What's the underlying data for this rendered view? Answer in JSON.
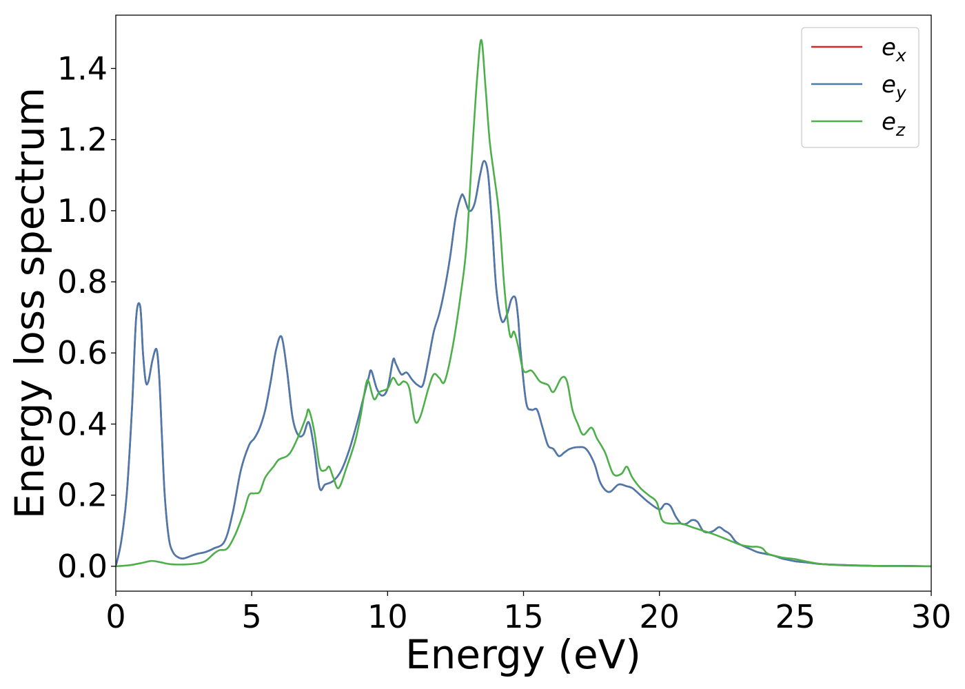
{
  "chart_data": {
    "type": "line",
    "title": "",
    "xlabel": "Energy (eV)",
    "ylabel": "Energy loss spectrum",
    "xlim": [
      0,
      30
    ],
    "ylim": [
      -0.07,
      1.55
    ],
    "xticks": [
      0,
      5,
      10,
      15,
      20,
      25,
      30
    ],
    "yticks": [
      0.0,
      0.2,
      0.4,
      0.6,
      0.8,
      1.0,
      1.2,
      1.4
    ],
    "xtick_labels": [
      "0",
      "5",
      "10",
      "15",
      "20",
      "25",
      "30"
    ],
    "ytick_labels": [
      "0.0",
      "0.2",
      "0.4",
      "0.6",
      "0.8",
      "1.0",
      "1.2",
      "1.4"
    ],
    "grid": false,
    "legend_position": "top-right",
    "legend": [
      {
        "base": "e",
        "sub": "x",
        "color": "#d62728"
      },
      {
        "base": "e",
        "sub": "y",
        "color": "#4a7aad"
      },
      {
        "base": "e",
        "sub": "z",
        "color": "#4daf4a"
      }
    ],
    "series": [
      {
        "name": "e_x",
        "color": "#d62728",
        "x": [
          0,
          0.2,
          0.4,
          0.6,
          0.75,
          0.9,
          1.0,
          1.1,
          1.2,
          1.35,
          1.5,
          1.6,
          1.7,
          1.8,
          1.95,
          2.1,
          2.3,
          2.5,
          2.8,
          3.0,
          3.3,
          3.6,
          4.0,
          4.3,
          4.6,
          4.9,
          5.1,
          5.3,
          5.5,
          5.7,
          5.9,
          6.1,
          6.3,
          6.5,
          6.7,
          6.9,
          7.1,
          7.3,
          7.5,
          7.7,
          8.0,
          8.3,
          8.6,
          8.9,
          9.1,
          9.3,
          9.4,
          9.6,
          9.8,
          10.0,
          10.2,
          10.3,
          10.5,
          10.7,
          10.9,
          11.1,
          11.3,
          11.5,
          11.7,
          11.9,
          12.1,
          12.3,
          12.5,
          12.7,
          12.8,
          13.0,
          13.2,
          13.4,
          13.55,
          13.7,
          13.85,
          14.0,
          14.2,
          14.4,
          14.55,
          14.7,
          14.8,
          14.9,
          15.1,
          15.3,
          15.5,
          15.7,
          15.9,
          16.1,
          16.3,
          16.5,
          16.7,
          17.0,
          17.3,
          17.6,
          17.8,
          18.0,
          18.2,
          18.5,
          18.8,
          19.0,
          19.3,
          19.6,
          20.0,
          20.2,
          20.4,
          20.6,
          20.8,
          21.0,
          21.2,
          21.4,
          21.6,
          21.8,
          22.0,
          22.2,
          22.4,
          22.6,
          22.8,
          23.0,
          23.3,
          23.6,
          23.9,
          24.2,
          24.5,
          24.8,
          25.0,
          25.5,
          26.0,
          27.0,
          28.0,
          29.0,
          30.0
        ],
        "y": [
          0.0,
          0.07,
          0.2,
          0.45,
          0.7,
          0.73,
          0.6,
          0.52,
          0.52,
          0.58,
          0.61,
          0.53,
          0.36,
          0.2,
          0.08,
          0.04,
          0.025,
          0.022,
          0.03,
          0.035,
          0.04,
          0.05,
          0.07,
          0.15,
          0.27,
          0.34,
          0.36,
          0.39,
          0.44,
          0.52,
          0.61,
          0.645,
          0.55,
          0.42,
          0.37,
          0.37,
          0.405,
          0.33,
          0.22,
          0.23,
          0.24,
          0.27,
          0.33,
          0.41,
          0.47,
          0.53,
          0.55,
          0.5,
          0.48,
          0.5,
          0.58,
          0.57,
          0.54,
          0.545,
          0.525,
          0.51,
          0.51,
          0.58,
          0.66,
          0.71,
          0.78,
          0.87,
          0.98,
          1.04,
          1.04,
          1.0,
          1.02,
          1.1,
          1.14,
          1.1,
          0.95,
          0.78,
          0.69,
          0.71,
          0.75,
          0.755,
          0.7,
          0.6,
          0.46,
          0.44,
          0.44,
          0.39,
          0.34,
          0.33,
          0.31,
          0.32,
          0.33,
          0.335,
          0.33,
          0.29,
          0.24,
          0.215,
          0.21,
          0.23,
          0.225,
          0.22,
          0.2,
          0.18,
          0.16,
          0.175,
          0.17,
          0.14,
          0.12,
          0.12,
          0.13,
          0.125,
          0.1,
          0.095,
          0.1,
          0.11,
          0.1,
          0.09,
          0.07,
          0.06,
          0.05,
          0.04,
          0.035,
          0.03,
          0.022,
          0.017,
          0.014,
          0.01,
          0.006,
          0.003,
          0.001,
          0.001,
          0.0
        ]
      },
      {
        "name": "e_y",
        "color": "#4a7aad",
        "x": [
          0,
          0.2,
          0.4,
          0.6,
          0.75,
          0.9,
          1.0,
          1.1,
          1.2,
          1.35,
          1.5,
          1.6,
          1.7,
          1.8,
          1.95,
          2.1,
          2.3,
          2.5,
          2.8,
          3.0,
          3.3,
          3.6,
          4.0,
          4.3,
          4.6,
          4.9,
          5.1,
          5.3,
          5.5,
          5.7,
          5.9,
          6.1,
          6.3,
          6.5,
          6.7,
          6.9,
          7.1,
          7.3,
          7.5,
          7.7,
          8.0,
          8.3,
          8.6,
          8.9,
          9.1,
          9.3,
          9.4,
          9.6,
          9.8,
          10.0,
          10.2,
          10.3,
          10.5,
          10.7,
          10.9,
          11.1,
          11.3,
          11.5,
          11.7,
          11.9,
          12.1,
          12.3,
          12.5,
          12.7,
          12.8,
          13.0,
          13.2,
          13.4,
          13.55,
          13.7,
          13.85,
          14.0,
          14.2,
          14.4,
          14.55,
          14.7,
          14.8,
          14.9,
          15.1,
          15.3,
          15.5,
          15.7,
          15.9,
          16.1,
          16.3,
          16.5,
          16.7,
          17.0,
          17.3,
          17.6,
          17.8,
          18.0,
          18.2,
          18.5,
          18.8,
          19.0,
          19.3,
          19.6,
          20.0,
          20.2,
          20.4,
          20.6,
          20.8,
          21.0,
          21.2,
          21.4,
          21.6,
          21.8,
          22.0,
          22.2,
          22.4,
          22.6,
          22.8,
          23.0,
          23.3,
          23.6,
          23.9,
          24.2,
          24.5,
          24.8,
          25.0,
          25.5,
          26.0,
          27.0,
          28.0,
          29.0,
          30.0
        ],
        "y": [
          0.0,
          0.07,
          0.2,
          0.45,
          0.7,
          0.73,
          0.6,
          0.52,
          0.52,
          0.58,
          0.61,
          0.53,
          0.36,
          0.2,
          0.08,
          0.04,
          0.025,
          0.022,
          0.03,
          0.035,
          0.04,
          0.05,
          0.07,
          0.15,
          0.27,
          0.34,
          0.36,
          0.39,
          0.44,
          0.52,
          0.61,
          0.645,
          0.55,
          0.42,
          0.37,
          0.37,
          0.405,
          0.33,
          0.22,
          0.23,
          0.24,
          0.27,
          0.33,
          0.41,
          0.47,
          0.53,
          0.55,
          0.5,
          0.48,
          0.5,
          0.58,
          0.57,
          0.54,
          0.545,
          0.525,
          0.51,
          0.51,
          0.58,
          0.66,
          0.71,
          0.78,
          0.87,
          0.98,
          1.04,
          1.04,
          1.0,
          1.02,
          1.1,
          1.14,
          1.1,
          0.95,
          0.78,
          0.69,
          0.71,
          0.75,
          0.755,
          0.7,
          0.6,
          0.46,
          0.44,
          0.44,
          0.39,
          0.34,
          0.33,
          0.31,
          0.32,
          0.33,
          0.335,
          0.33,
          0.29,
          0.24,
          0.215,
          0.21,
          0.23,
          0.225,
          0.22,
          0.2,
          0.18,
          0.16,
          0.175,
          0.17,
          0.14,
          0.12,
          0.12,
          0.13,
          0.125,
          0.1,
          0.095,
          0.1,
          0.11,
          0.1,
          0.09,
          0.07,
          0.06,
          0.05,
          0.04,
          0.035,
          0.03,
          0.022,
          0.017,
          0.014,
          0.01,
          0.006,
          0.003,
          0.001,
          0.001,
          0.0
        ]
      },
      {
        "name": "e_z",
        "color": "#4daf4a",
        "x": [
          0,
          0.5,
          1.0,
          1.3,
          1.6,
          2.0,
          2.5,
          3.0,
          3.3,
          3.6,
          3.8,
          4.1,
          4.4,
          4.7,
          4.9,
          5.1,
          5.3,
          5.5,
          5.8,
          6.0,
          6.3,
          6.5,
          6.8,
          7.0,
          7.1,
          7.3,
          7.5,
          7.7,
          7.85,
          8.0,
          8.2,
          8.5,
          8.8,
          9.0,
          9.2,
          9.3,
          9.5,
          9.7,
          10.0,
          10.2,
          10.4,
          10.6,
          10.8,
          11.0,
          11.2,
          11.5,
          11.7,
          11.9,
          12.1,
          12.4,
          12.7,
          12.9,
          13.1,
          13.3,
          13.45,
          13.6,
          13.75,
          13.9,
          14.1,
          14.3,
          14.5,
          14.65,
          14.8,
          15.0,
          15.3,
          15.6,
          15.9,
          16.1,
          16.4,
          16.6,
          16.8,
          17.0,
          17.2,
          17.5,
          17.7,
          18.0,
          18.3,
          18.6,
          18.8,
          19.0,
          19.3,
          19.6,
          19.9,
          20.1,
          20.4,
          20.8,
          21.2,
          21.6,
          22.0,
          22.5,
          23.0,
          23.4,
          23.6,
          23.8,
          24.0,
          24.5,
          25.0,
          25.5,
          26.0,
          27.0,
          28.0,
          30.0
        ],
        "y": [
          0.0,
          0.003,
          0.01,
          0.015,
          0.012,
          0.006,
          0.005,
          0.008,
          0.015,
          0.035,
          0.045,
          0.05,
          0.09,
          0.15,
          0.2,
          0.205,
          0.21,
          0.25,
          0.28,
          0.3,
          0.31,
          0.33,
          0.38,
          0.42,
          0.44,
          0.38,
          0.28,
          0.27,
          0.28,
          0.25,
          0.22,
          0.28,
          0.35,
          0.42,
          0.51,
          0.52,
          0.47,
          0.49,
          0.5,
          0.53,
          0.51,
          0.52,
          0.5,
          0.41,
          0.42,
          0.5,
          0.54,
          0.53,
          0.52,
          0.62,
          0.77,
          0.9,
          1.15,
          1.38,
          1.48,
          1.35,
          1.2,
          1.11,
          0.99,
          0.78,
          0.65,
          0.66,
          0.62,
          0.55,
          0.55,
          0.52,
          0.51,
          0.49,
          0.53,
          0.52,
          0.44,
          0.4,
          0.37,
          0.39,
          0.36,
          0.32,
          0.26,
          0.26,
          0.28,
          0.25,
          0.22,
          0.2,
          0.18,
          0.13,
          0.12,
          0.12,
          0.11,
          0.1,
          0.09,
          0.075,
          0.06,
          0.055,
          0.055,
          0.05,
          0.035,
          0.025,
          0.02,
          0.012,
          0.006,
          0.002,
          0.001,
          0.0
        ]
      }
    ]
  }
}
